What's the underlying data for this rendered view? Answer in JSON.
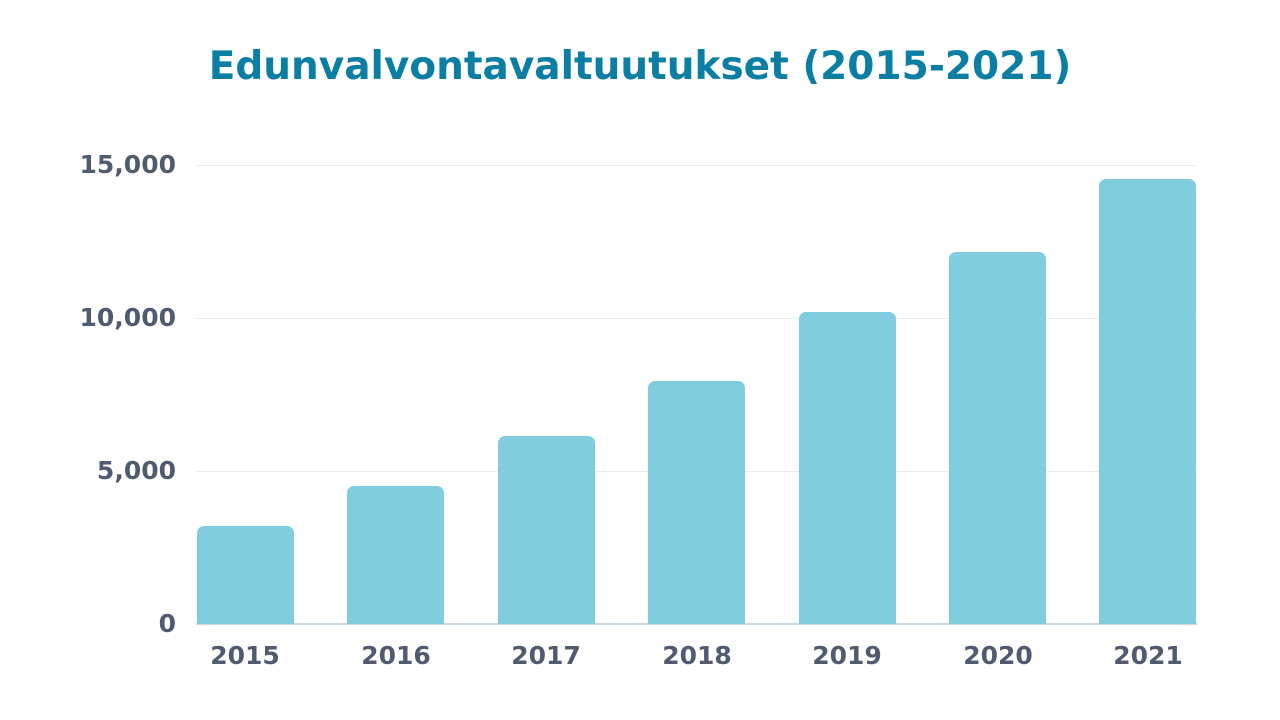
{
  "title": "Edunvalvontavaltuutukset (2015-2021)",
  "colors": {
    "title": "#0b7ea3",
    "bar": "#81cde0",
    "tick_label": "#4f5b70",
    "grid": "#e8edf0",
    "axis": "#c9d6df"
  },
  "y_ticks": [
    "15,000",
    "10,000",
    "5,000",
    "0"
  ],
  "x_ticks": [
    "2015",
    "2016",
    "2017",
    "2018",
    "2019",
    "2020",
    "2021"
  ],
  "chart_data": {
    "type": "bar",
    "title": "Edunvalvontavaltuutukset (2015-2021)",
    "xlabel": "",
    "ylabel": "",
    "categories": [
      "2015",
      "2016",
      "2017",
      "2018",
      "2019",
      "2020",
      "2021"
    ],
    "values": [
      3200,
      4500,
      6150,
      7950,
      10200,
      12150,
      14550
    ],
    "ylim": [
      0,
      15000
    ],
    "yticks": [
      0,
      5000,
      10000,
      15000
    ],
    "grid": true,
    "legend": null
  }
}
